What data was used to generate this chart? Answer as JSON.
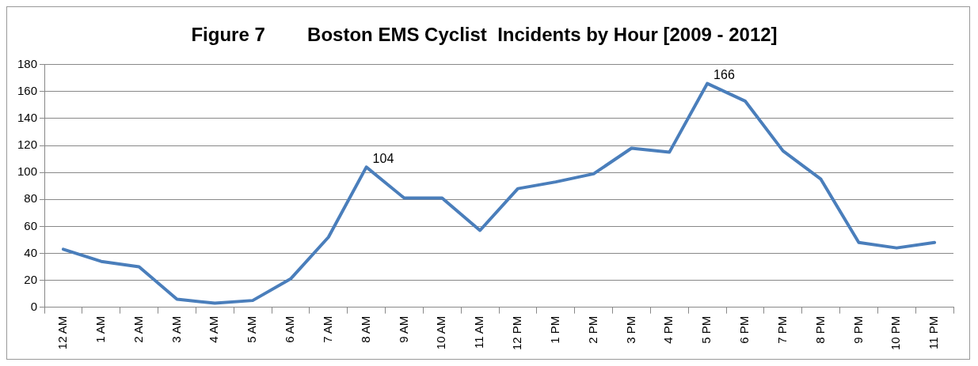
{
  "chart_data": {
    "type": "line",
    "title": "Figure 7        Boston EMS Cyclist  Incidents by Hour [2009 - 2012]",
    "categories": [
      "12 AM",
      "1 AM",
      "2 AM",
      "3 AM",
      "4 AM",
      "5 AM",
      "6 AM",
      "7 AM",
      "8 AM",
      "9 AM",
      "10 AM",
      "11 AM",
      "12 PM",
      "1 PM",
      "2 PM",
      "3 PM",
      "4 PM",
      "5 PM",
      "6 PM",
      "7 PM",
      "8 PM",
      "9 PM",
      "10 PM",
      "11 PM"
    ],
    "series": [
      {
        "color": "#4a7ebb",
        "values": [
          43,
          34,
          30,
          6,
          3,
          5,
          21,
          52,
          104,
          81,
          81,
          57,
          88,
          93,
          99,
          118,
          115,
          166,
          153,
          116,
          95,
          48,
          44,
          48
        ],
        "value_labels": [
          null,
          null,
          null,
          null,
          null,
          null,
          null,
          null,
          "104",
          null,
          null,
          null,
          null,
          null,
          null,
          null,
          null,
          "166",
          null,
          null,
          null,
          null,
          null,
          null
        ]
      }
    ],
    "ylim": [
      0,
      180
    ],
    "yticks": [
      0,
      20,
      40,
      60,
      80,
      100,
      120,
      140,
      160,
      180
    ],
    "grid": "y",
    "legend": false,
    "marker": "none",
    "line_style": "solid"
  }
}
